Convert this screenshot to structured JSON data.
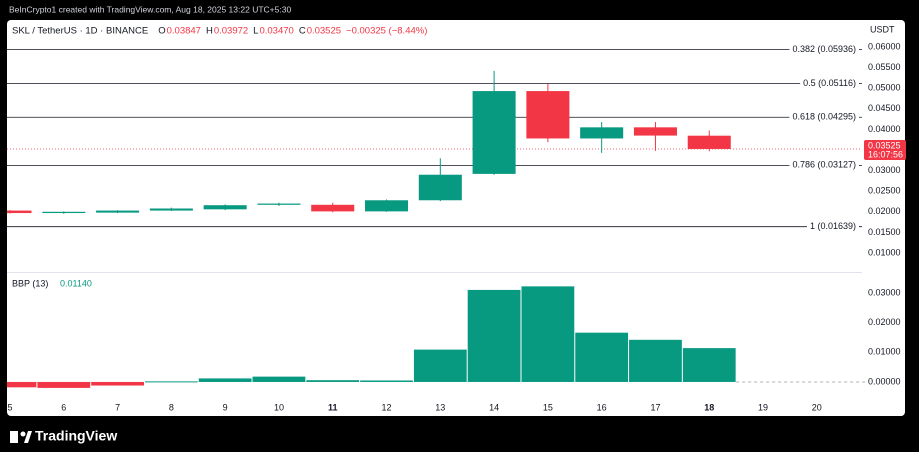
{
  "header": {
    "credit": "BeInCrypto1 created with TradingView.com, Aug 18, 2025 13:22 UTC+5:30",
    "brand": "TradingView"
  },
  "chart_data": [
    {
      "type": "candlestick",
      "title": "SKL / TetherUS · 1D · BINANCE",
      "ohlc_legend": [
        {
          "label": "O",
          "value": "0.03847"
        },
        {
          "label": "H",
          "value": "0.03972"
        },
        {
          "label": "L",
          "value": "0.03470"
        },
        {
          "label": "C",
          "value": "0.03525"
        }
      ],
      "change": "−0.00325 (−8.44%)",
      "y_axis_label": "USDT",
      "x": [
        5,
        6,
        7,
        8,
        9,
        10,
        11,
        12,
        13,
        14,
        15,
        16,
        17,
        18
      ],
      "open": [
        0.0203,
        0.0197,
        0.0198,
        0.0203,
        0.0206,
        0.0217,
        0.0217,
        0.0201,
        0.0228,
        0.0292,
        0.0493,
        0.0378,
        0.0405,
        0.03847
      ],
      "high": [
        0.0204,
        0.0201,
        0.0204,
        0.021,
        0.0218,
        0.0222,
        0.0222,
        0.023,
        0.033,
        0.0542,
        0.0511,
        0.0418,
        0.0418,
        0.03972
      ],
      "low": [
        0.0196,
        0.0195,
        0.0197,
        0.0202,
        0.0204,
        0.0214,
        0.0199,
        0.02,
        0.0226,
        0.029,
        0.0369,
        0.0343,
        0.0348,
        0.0347
      ],
      "close": [
        0.0197,
        0.02,
        0.0203,
        0.0208,
        0.0216,
        0.022,
        0.0201,
        0.0228,
        0.029,
        0.0493,
        0.0378,
        0.0405,
        0.0385,
        0.03525
      ],
      "up_color": "#089981",
      "down_color": "#f23645",
      "ylim": [
        0.00539,
        0.06655
      ],
      "yticks": [
        {
          "value": 0.01,
          "label": "0.01000"
        },
        {
          "value": 0.015,
          "label": "0.01500"
        },
        {
          "value": 0.02,
          "label": "0.02000"
        },
        {
          "value": 0.025,
          "label": "0.02500"
        },
        {
          "value": 0.03,
          "label": "0.03000"
        },
        {
          "value": 0.035,
          "label": "0.03500"
        },
        {
          "value": 0.04,
          "label": "0.04000"
        },
        {
          "value": 0.045,
          "label": "0.04500"
        },
        {
          "value": 0.05,
          "label": "0.05000"
        },
        {
          "value": 0.055,
          "label": "0.05500"
        },
        {
          "value": 0.06,
          "label": "0.06000"
        }
      ],
      "levels": [
        {
          "label": "0.382 (0.05936)",
          "value": 0.05936
        },
        {
          "label": "0.5 (0.05116)",
          "value": 0.05116
        },
        {
          "label": "0.618 (0.04295)",
          "value": 0.04295
        },
        {
          "label": "0.786 (0.03127)",
          "value": 0.03127
        },
        {
          "label": "1 (0.01639)",
          "value": 0.01639
        }
      ],
      "last_price": 0.03525,
      "countdown": "16:07:56"
    },
    {
      "type": "column",
      "title": "BBP (13)",
      "last_value": "0.01140",
      "x": [
        5,
        6,
        7,
        8,
        9,
        10,
        11,
        12,
        13,
        14,
        15,
        16,
        17,
        18
      ],
      "values": [
        -0.0018,
        -0.002,
        -0.0012,
        0.0002,
        0.0012,
        0.0018,
        0.0006,
        0.0005,
        0.0109,
        0.031,
        0.0322,
        0.0166,
        0.0142,
        0.0114
      ],
      "up_color": "#089981",
      "down_color": "#f23645",
      "ylim": [
        -0.0054,
        0.0367
      ],
      "yticks": [
        {
          "value": 0,
          "label": "0.00000"
        },
        {
          "value": 0.01,
          "label": "0.01000"
        },
        {
          "value": 0.02,
          "label": "0.02000"
        },
        {
          "value": 0.03,
          "label": "0.03000"
        }
      ],
      "xlim": [
        4.944,
        20.84
      ],
      "xticks": [
        5,
        6,
        7,
        8,
        9,
        10,
        11,
        12,
        13,
        14,
        15,
        16,
        17,
        18,
        19,
        20
      ],
      "bold_xticks": [
        11,
        18
      ]
    }
  ]
}
